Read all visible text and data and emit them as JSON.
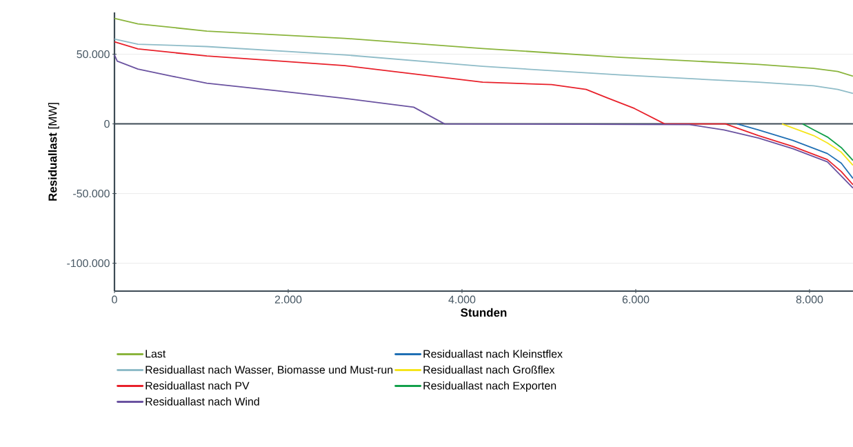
{
  "chart_data": {
    "type": "line",
    "xlabel": "Stunden",
    "ylabel": "**Residuallast** [MW]",
    "xlim": [
      0,
      8500
    ],
    "ylim": [
      -120000,
      80000
    ],
    "xticks": [
      0,
      {
        "value": 2000,
        "label": "2.000"
      },
      {
        "value": 4000,
        "label": "4.000"
      },
      {
        "value": 6000,
        "label": "6.000"
      },
      {
        "value": 8000,
        "label": "8.000"
      }
    ],
    "yticks": [
      {
        "value": -100000,
        "label": "-100.000"
      },
      {
        "value": -50000,
        "label": "-50.000"
      },
      0,
      {
        "value": 50000,
        "label": "50.000"
      }
    ],
    "grid": "y",
    "legend": "bottom",
    "marker": "none",
    "line_style": "solid",
    "ref_lines": [
      {
        "axis": "y",
        "value": 0,
        "color": "#3d4b55"
      }
    ],
    "series": [
      {
        "name": "Last",
        "color": "#8ab43c",
        "x": [
          0,
          270,
          1063,
          2651,
          4238,
          5825,
          7413,
          8048,
          8325,
          8500
        ],
        "values": [
          75700,
          71800,
          66600,
          61400,
          54100,
          47800,
          42700,
          39800,
          37600,
          34200
        ]
      },
      {
        "name": "Residuallast nach Wasser, Biomasse und Must-run",
        "color": "#8fbcc8",
        "x": [
          0,
          270,
          1063,
          2651,
          4238,
          5825,
          7413,
          8048,
          8325,
          8500
        ],
        "values": [
          60900,
          57200,
          55500,
          49500,
          41300,
          35100,
          29900,
          27300,
          24700,
          21900
        ]
      },
      {
        "name": "Residuallast nach PV",
        "color": "#e8202a",
        "x": [
          0,
          270,
          1063,
          2651,
          4238,
          5032,
          5429,
          5667,
          5984,
          6333,
          7032,
          7413,
          7810,
          8206,
          8365,
          8500
        ],
        "values": [
          58900,
          53800,
          48700,
          41800,
          29900,
          28200,
          24700,
          18800,
          11100,
          0,
          0,
          -8400,
          -16200,
          -25600,
          -34200,
          -43600
        ]
      },
      {
        "name": "Residuallast nach Wind",
        "color": "#6a52a0",
        "x": [
          0,
          32,
          270,
          667,
          1063,
          1857,
          2651,
          3444,
          3800,
          6619,
          7016,
          7413,
          7810,
          8206,
          8500
        ],
        "values": [
          49500,
          45000,
          39300,
          34200,
          29200,
          23900,
          18300,
          12000,
          0,
          -500,
          -4300,
          -10200,
          -17800,
          -27200,
          -46000
        ]
      },
      {
        "name": "Residuallast nach Kleinstflex",
        "color": "#1f6fb4",
        "x": [
          7167,
          7413,
          7810,
          8206,
          8365,
          8500
        ],
        "values": [
          0,
          -4300,
          -11900,
          -21300,
          -28200,
          -39100
        ]
      },
      {
        "name": "Residuallast nach Großflex",
        "color": "#f5e51b",
        "x": [
          7683,
          8048,
          8206,
          8365,
          8500
        ],
        "values": [
          0,
          -8400,
          -13700,
          -20300,
          -29700
        ]
      },
      {
        "name": "Residuallast nach Exporten",
        "color": "#12a04a",
        "x": [
          7921,
          8048,
          8206,
          8365,
          8500
        ],
        "values": [
          0,
          -4300,
          -9400,
          -17000,
          -26200
        ]
      }
    ]
  }
}
